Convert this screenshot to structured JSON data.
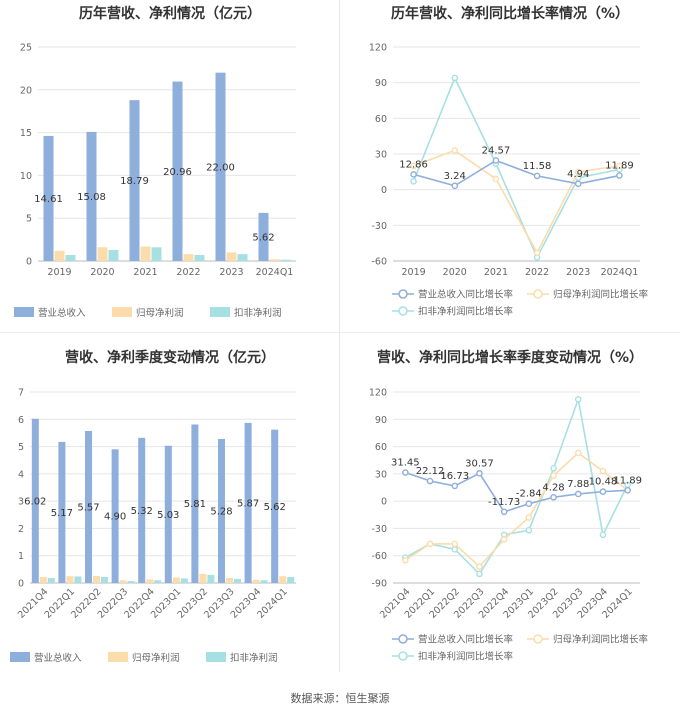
{
  "colors": {
    "revenue": "#8eaedc",
    "net_profit": "#fbdcaa",
    "deducted_profit": "#a7e0e3",
    "axis_text": "#666666",
    "grid": "#e6e6e6"
  },
  "footer": "数据来源：恒生聚源",
  "chart_data": [
    {
      "type": "bar",
      "title": "历年营收、净利情况（亿元）",
      "categories": [
        "2019",
        "2020",
        "2021",
        "2022",
        "2023",
        "2024Q1"
      ],
      "ylim": [
        0,
        25
      ],
      "yticks": [
        0,
        5,
        10,
        15,
        20,
        25
      ],
      "series": [
        {
          "name": "营业总收入",
          "values": [
            14.61,
            15.08,
            18.79,
            20.96,
            22.0,
            5.62
          ],
          "labels": [
            "14.61",
            "15.08",
            "18.79",
            "20.96",
            "22.00",
            "5.62"
          ]
        },
        {
          "name": "归母净利润",
          "values": [
            1.2,
            1.6,
            1.7,
            0.8,
            1.0,
            0.2
          ]
        },
        {
          "name": "扣非净利润",
          "values": [
            0.7,
            1.3,
            1.6,
            0.7,
            0.8,
            0.15
          ]
        }
      ],
      "legend": "bottom"
    },
    {
      "type": "line",
      "title": "历年营收、净利同比增长率情况（%）",
      "categories": [
        "2019",
        "2020",
        "2021",
        "2022",
        "2023",
        "2024Q1"
      ],
      "ylim": [
        -60,
        120
      ],
      "yticks": [
        -60,
        -30,
        0,
        30,
        60,
        90,
        120
      ],
      "series": [
        {
          "name": "营业总收入同比增长率",
          "values": [
            12.86,
            3.24,
            24.57,
            11.58,
            4.94,
            11.89
          ],
          "labels": [
            "12.86",
            "3.24",
            "24.57",
            "11.58",
            "4.94",
            "11.89"
          ]
        },
        {
          "name": "归母净利润同比增长率",
          "values": [
            20,
            33,
            9,
            -53,
            15,
            20
          ]
        },
        {
          "name": "扣非净利润同比增长率",
          "values": [
            7,
            94,
            22,
            -57,
            10,
            17
          ]
        }
      ],
      "legend": "bottom"
    },
    {
      "type": "bar",
      "title": "营收、净利季度变动情况（亿元）",
      "categories": [
        "2021Q4",
        "2022Q1",
        "2022Q2",
        "2022Q3",
        "2022Q4",
        "2023Q1",
        "2023Q2",
        "2023Q3",
        "2023Q4",
        "2024Q1"
      ],
      "ylim": [
        0,
        7
      ],
      "yticks": [
        0,
        1,
        2,
        3,
        4,
        5,
        6,
        7
      ],
      "series": [
        {
          "name": "营业总收入",
          "values": [
            6.02,
            5.17,
            5.57,
            4.9,
            5.32,
            5.03,
            5.81,
            5.28,
            5.87,
            5.62
          ],
          "labels": [
            "6.02",
            "5.17",
            "5.57",
            "4.90",
            "5.32",
            "5.03",
            "5.81",
            "5.28",
            "5.87",
            "5.62"
          ]
        },
        {
          "name": "归母净利润",
          "values": [
            0.22,
            0.25,
            0.26,
            0.1,
            0.13,
            0.2,
            0.33,
            0.18,
            0.12,
            0.25
          ]
        },
        {
          "name": "扣非净利润",
          "values": [
            0.18,
            0.24,
            0.22,
            0.07,
            0.1,
            0.17,
            0.3,
            0.15,
            0.1,
            0.22
          ]
        }
      ],
      "legend": "bottom"
    },
    {
      "type": "line",
      "title": "营收、净利同比增长率季度变动情况（%）",
      "categories": [
        "2021Q4",
        "2022Q1",
        "2022Q2",
        "2022Q3",
        "2022Q4",
        "2023Q1",
        "2023Q2",
        "2023Q3",
        "2023Q4",
        "2024Q1"
      ],
      "ylim": [
        -90,
        120
      ],
      "yticks": [
        -90,
        -60,
        -30,
        0,
        30,
        60,
        90,
        120
      ],
      "series": [
        {
          "name": "营业总收入同比增长率",
          "values": [
            31.45,
            22.12,
            16.73,
            30.57,
            -11.73,
            -2.84,
            4.28,
            7.88,
            10.48,
            11.89
          ],
          "labels": [
            "31.45",
            "22.12",
            "16.73",
            "30.57",
            "-11.73",
            "-2.84",
            "4.28",
            "7.88",
            "10.48",
            "11.89"
          ]
        },
        {
          "name": "归母净利润同比增长率",
          "values": [
            -65,
            -47,
            -47,
            -72,
            -42,
            -18,
            28,
            53,
            33,
            12
          ]
        },
        {
          "name": "扣非净利润同比增长率",
          "values": [
            -62,
            -47,
            -53,
            -80,
            -37,
            -32,
            36,
            112,
            -37,
            18
          ]
        }
      ],
      "legend": "bottom"
    }
  ]
}
